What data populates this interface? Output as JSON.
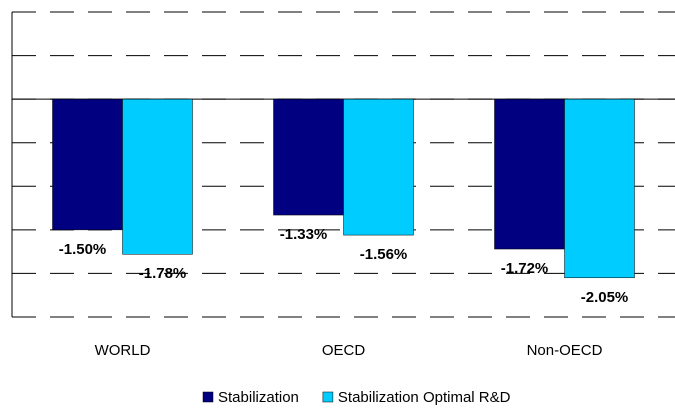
{
  "chart_data": {
    "type": "bar",
    "categories": [
      "WORLD",
      "OECD",
      "Non-OECD"
    ],
    "series": [
      {
        "name": "Stabilization",
        "color": "#000080",
        "values": [
          -1.5,
          -1.33,
          -1.72
        ],
        "value_labels": [
          "-1.50%",
          "-1.33%",
          "-1.72%"
        ]
      },
      {
        "name": "Stabilization Optimal R&D",
        "color": "#00ccff",
        "values": [
          -1.78,
          -1.56,
          -2.05
        ],
        "value_labels": [
          "-1.78%",
          "-1.56%",
          "-2.05%"
        ]
      }
    ],
    "ylim": [
      -2.5,
      1
    ],
    "yticks": [
      -2.5,
      -2,
      -1.5,
      -1,
      -0.5,
      0,
      0.5,
      1
    ],
    "grid": true
  }
}
